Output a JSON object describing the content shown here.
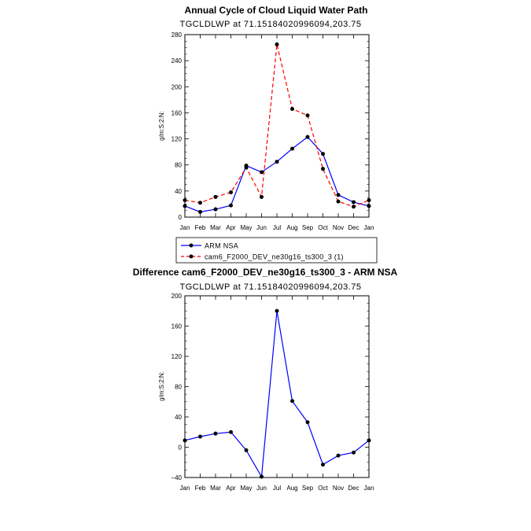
{
  "colors": {
    "series1": "#0000ff",
    "series2": "#ff0000",
    "marker": "#000000"
  },
  "chart_data": [
    {
      "type": "line",
      "title": "Annual Cycle of Cloud Liquid Water Path",
      "subtitle": "TGCLDLWP  at  71.15184020996094,203.75",
      "xlabel": "",
      "ylabel": "g/m:S:2:N:",
      "categories": [
        "Jan",
        "Feb",
        "Mar",
        "Apr",
        "May",
        "Jun",
        "Jul",
        "Aug",
        "Sep",
        "Oct",
        "Nov",
        "Dec",
        "Jan"
      ],
      "ylim": [
        0,
        280
      ],
      "yticks": [
        0,
        40,
        80,
        120,
        160,
        200,
        240,
        280
      ],
      "legend": {
        "position": "bottom-left"
      },
      "series": [
        {
          "name": "ARM NSA",
          "style": "solid",
          "color": "#0000ff",
          "values": [
            17,
            8,
            12,
            18,
            79,
            69,
            85,
            105,
            123,
            97,
            34,
            23,
            17
          ]
        },
        {
          "name": "cam6_F2000_DEV_ne30g16_ts300_3 (1)",
          "style": "dashed",
          "color": "#ff0000",
          "values": [
            26,
            22,
            31,
            38,
            76,
            31,
            265,
            166,
            156,
            74,
            24,
            16,
            26
          ]
        }
      ]
    },
    {
      "type": "line",
      "title": "Difference cam6_F2000_DEV_ne30g16_ts300_3 - ARM NSA",
      "subtitle": "TGCLDLWP  at  71.15184020996094,203.75",
      "xlabel": "",
      "ylabel": "g/m:S:2:N:",
      "categories": [
        "Jan",
        "Feb",
        "Mar",
        "Apr",
        "May",
        "Jun",
        "Jul",
        "Aug",
        "Sep",
        "Oct",
        "Nov",
        "Dec",
        "Jan"
      ],
      "ylim": [
        -40,
        200
      ],
      "yticks": [
        -40,
        0,
        40,
        80,
        120,
        160,
        200
      ],
      "series": [
        {
          "name": "Difference",
          "style": "solid",
          "color": "#0000ff",
          "values": [
            9,
            14,
            18,
            20,
            -4,
            -39,
            180,
            61,
            33,
            -23,
            -11,
            -7,
            9
          ]
        }
      ]
    }
  ]
}
